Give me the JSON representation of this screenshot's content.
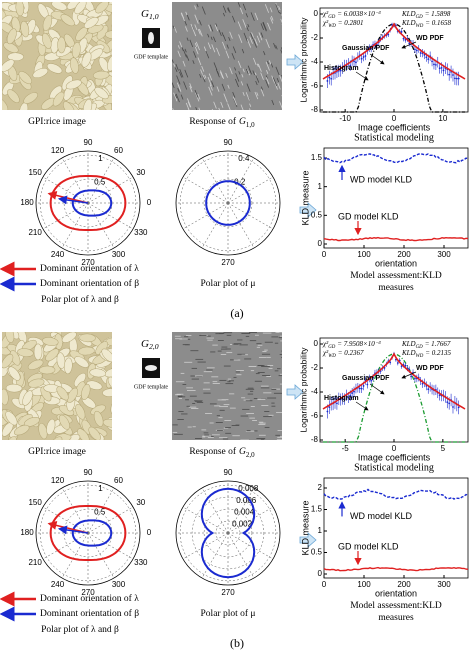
{
  "panels": [
    {
      "label": "(a)",
      "image_caption": "GPI:rice image",
      "template": {
        "symbol": "G",
        "sub": "1,0",
        "caption": "GDF template"
      },
      "response": {
        "caption": "Response of",
        "symbol": "G",
        "sub": "1,0"
      },
      "stat": {
        "title": "Statistical modeling",
        "xlabel": "Image coefficients",
        "ylabel": "Logarithmic probability",
        "xticks": [
          -10,
          0,
          10
        ],
        "yticks": [
          0,
          -2,
          -4,
          -6,
          -8
        ],
        "gaussian": "Gaussian PDF",
        "wd": "WD PDF",
        "histogram": "Histogram",
        "stats": [
          {
            "name": "χ²",
            "sub": "GD",
            "value": "= 6.0038×10⁻³"
          },
          {
            "name": "χ²",
            "sub": "WD",
            "value": "= 0.2801"
          },
          {
            "name": "KLD",
            "sub": "GD",
            "value": "= 1.5898"
          },
          {
            "name": "KLD",
            "sub": "WD",
            "value": "= 0.1658"
          }
        ]
      },
      "polar_lb": {
        "angles": [
          90,
          60,
          30,
          0,
          330,
          300,
          270,
          240,
          210,
          180,
          150,
          120
        ],
        "radii": [
          0.5,
          1
        ],
        "legend_lambda": "Dominant orientation of λ",
        "legend_beta": "Dominant orientation of β",
        "caption": "Polar plot of λ and β"
      },
      "polar_mu": {
        "angles": [
          90,
          270
        ],
        "radii": [
          0.2,
          0.4
        ],
        "caption": "Polar plot of μ"
      },
      "kld": {
        "ylabel": "KLD measure",
        "xlabel": "orientation",
        "yticks": [
          0,
          0.5,
          1,
          1.5
        ],
        "xticks": [
          0,
          100,
          200,
          300
        ],
        "wd": "WD model KLD",
        "gd": "GD model KLD",
        "caption": [
          "Model assessment:KLD",
          "measures"
        ]
      }
    },
    {
      "label": "(b)",
      "image_caption": "GPI:rice image",
      "template": {
        "symbol": "G",
        "sub": "2,0",
        "caption": "GDF template"
      },
      "response": {
        "caption": "Response of",
        "symbol": "G",
        "sub": "2,0"
      },
      "stat": {
        "title": "Statistical modeling",
        "xlabel": "Image coefficients",
        "ylabel": "Logarithmic probability",
        "xticks": [
          -5,
          0,
          5
        ],
        "yticks": [
          0,
          -2,
          -4,
          -6,
          -8
        ],
        "gaussian": "Gaussian PDF",
        "wd": "WD PDF",
        "histogram": "Histogram",
        "stats": [
          {
            "name": "χ²",
            "sub": "GD",
            "value": "= 7.9508×10⁻³"
          },
          {
            "name": "χ²",
            "sub": "WD",
            "value": "= 0.2367"
          },
          {
            "name": "KLD",
            "sub": "GD",
            "value": "= 1.7667"
          },
          {
            "name": "KLD",
            "sub": "WD",
            "value": "= 0.2135"
          }
        ]
      },
      "polar_lb": {
        "angles": [
          90,
          60,
          30,
          0,
          330,
          300,
          270,
          240,
          210,
          180,
          150,
          120
        ],
        "radii": [
          0.5,
          1
        ],
        "legend_lambda": "Dominant orientation of λ",
        "legend_beta": "Dominant orientation of β",
        "caption": "Polar plot of λ and β"
      },
      "polar_mu": {
        "angles": [
          90,
          270
        ],
        "radii": [
          0.002,
          0.004,
          0.006,
          0.008
        ],
        "caption": "Polar plot of μ"
      },
      "kld": {
        "ylabel": "KLD measure",
        "xlabel": "orientation",
        "yticks": [
          0,
          0.5,
          1,
          1.5,
          2
        ],
        "xticks": [
          0,
          100,
          200,
          300
        ],
        "wd": "WD model KLD",
        "gd": "GD model KLD",
        "caption": [
          "Model assessment:KLD",
          "measures"
        ]
      }
    }
  ]
}
